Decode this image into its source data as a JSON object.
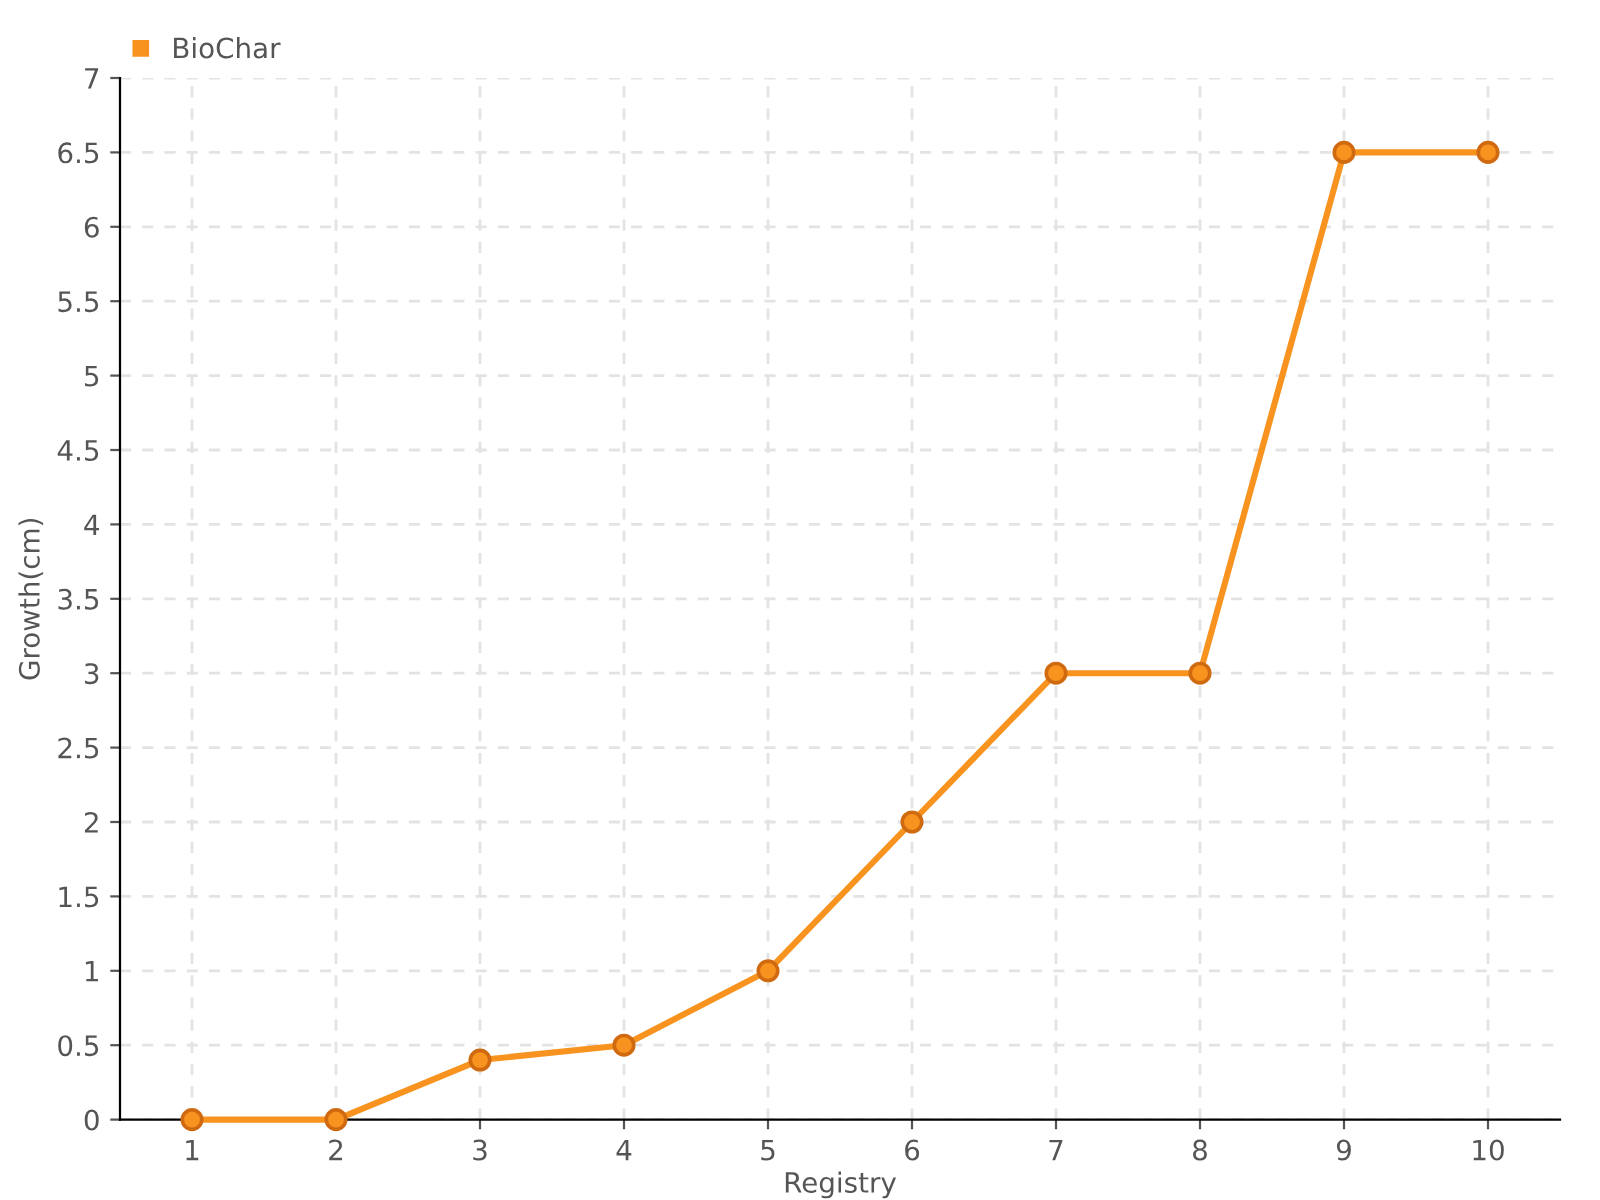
{
  "chart_data": {
    "type": "line",
    "xlabel": "Registry",
    "ylabel": "Growth(cm)",
    "categories": [
      "1",
      "2",
      "3",
      "4",
      "5",
      "6",
      "7",
      "8",
      "9",
      "10"
    ],
    "series": [
      {
        "name": "BioChar",
        "color": "#f7931e",
        "values": [
          0,
          0,
          0.4,
          0.5,
          1,
          2,
          3,
          3,
          6.5,
          6.5
        ]
      }
    ],
    "ylim": [
      0,
      7
    ],
    "yticks": [
      0,
      0.5,
      1,
      1.5,
      2,
      2.5,
      3,
      3.5,
      4,
      4.5,
      5,
      5.5,
      6,
      6.5,
      7
    ],
    "grid": true,
    "legend": "top left",
    "marker": "circle",
    "line_style": "solid"
  }
}
